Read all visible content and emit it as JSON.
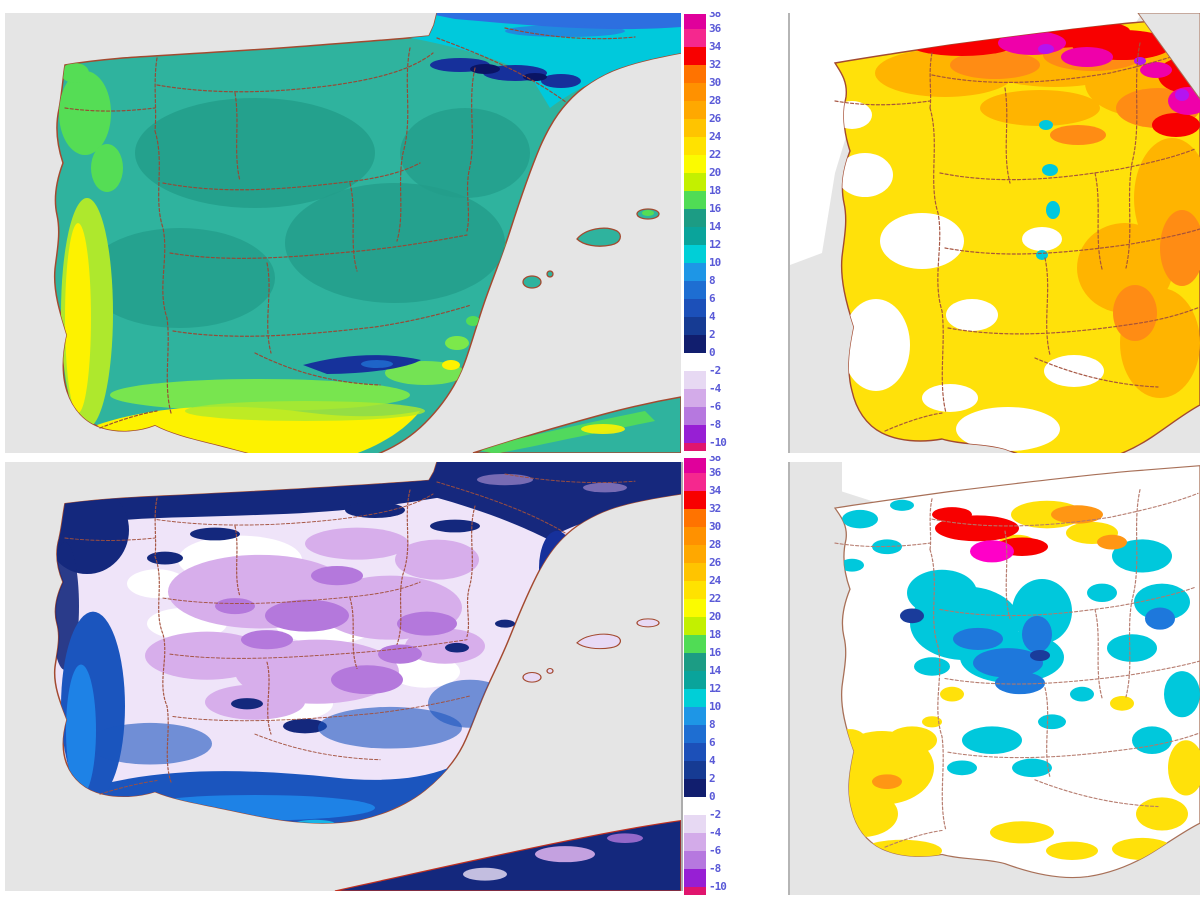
{
  "app": {
    "description": "Four-panel Iberian Peninsula temperature maps with two identical vertical color scales in degrees"
  },
  "legend": {
    "tick_color": "#5A5AD7",
    "tick_labels": [
      "38",
      "36",
      "34",
      "32",
      "30",
      "28",
      "26",
      "24",
      "22",
      "20",
      "18",
      "16",
      "14",
      "12",
      "10",
      "8",
      "6",
      "4",
      "2",
      "0",
      "-2",
      "-4",
      "-6",
      "-8",
      "-10"
    ],
    "cells": [
      {
        "range": "36 to 38",
        "color": "#E0009B"
      },
      {
        "range": "34 to 36",
        "color": "#F5288E"
      },
      {
        "range": "32 to 34",
        "color": "#F80000"
      },
      {
        "range": "30 to 32",
        "color": "#FF7300"
      },
      {
        "range": "28 to 30",
        "color": "#FF9100"
      },
      {
        "range": "26 to 28",
        "color": "#FFA800"
      },
      {
        "range": "24 to 26",
        "color": "#FFC400"
      },
      {
        "range": "22 to 24",
        "color": "#FFE200"
      },
      {
        "range": "20 to 22",
        "color": "#FBFB00"
      },
      {
        "range": "18 to 20",
        "color": "#C3F000"
      },
      {
        "range": "16 to 18",
        "color": "#50DC55"
      },
      {
        "range": "14 to 16",
        "color": "#1C9C84"
      },
      {
        "range": "12 to 14",
        "color": "#0AA49B"
      },
      {
        "range": "10 to 12",
        "color": "#00CFD7"
      },
      {
        "range": "8 to 10",
        "color": "#1E96E6"
      },
      {
        "range": "6 to 8",
        "color": "#1E6ED2"
      },
      {
        "range": "4 to 6",
        "color": "#1C50B9"
      },
      {
        "range": "2 to 4",
        "color": "#163B93"
      },
      {
        "range": "0 to 2",
        "color": "#111E6E"
      },
      {
        "range": "-2 to 0",
        "color": "#FFFFFF"
      },
      {
        "range": "-4 to -2",
        "color": "#E7D9F3"
      },
      {
        "range": "-6 to -4",
        "color": "#D3ABE9"
      },
      {
        "range": "-8 to -6",
        "color": "#B678DF"
      },
      {
        "range": "-10 to -8",
        "color": "#971FD4"
      },
      {
        "range": "below -10",
        "color": "#E0156E"
      }
    ]
  },
  "panels": [
    {
      "position": "top-left",
      "sea_color": "#E5E5E5",
      "content": "Temperature map: teal land with green and yellow bands along west and south coasts, cyan-blue band over France, dark blue Pyrenees"
    },
    {
      "position": "top-right",
      "sea_color": "#FFFFFF",
      "content": "Maximum temperature map: yellow land, orange north half, red and magenta blobs along the north coast, white patches in the south-west"
    },
    {
      "position": "bottom-left",
      "sea_color": "#E5E5E5",
      "content": "Minimum temperature map: pale lavender and purple interior, dark navy northern coasts, blue southern and western coasts"
    },
    {
      "position": "bottom-right",
      "sea_color": "#E5E5E5",
      "content": "Anomaly map: white land with scattered cyan and blue patches, yellow patches in the south-west and east, red and magenta blob in the north"
    }
  ]
}
